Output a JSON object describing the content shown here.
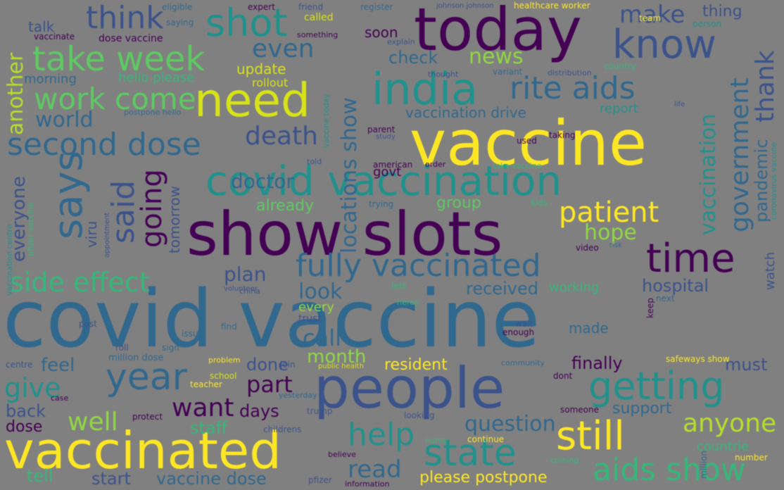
{
  "palette": {
    "background": "#808080",
    "viridis_dark": "#440154",
    "viridis_indigo": "#3b528b",
    "viridis_blue": "#31688e",
    "viridis_teal": "#21918c",
    "viridis_green": "#35b779",
    "viridis_lime": "#90d743",
    "viridis_yellow": "#fde725"
  },
  "words": [
    {
      "text": "covid vaccine",
      "color": "#31688e"
    },
    {
      "text": "show slots",
      "color": "#440154"
    },
    {
      "text": "vaccine",
      "color": "#fde725"
    },
    {
      "text": "today",
      "color": "#440154"
    },
    {
      "text": "people",
      "color": "#3b528b"
    },
    {
      "text": "vaccinated",
      "color": "#fde725"
    },
    {
      "text": "covid vaccination",
      "color": "#21918c"
    },
    {
      "text": "need",
      "color": "#d7e219"
    },
    {
      "text": "fully vaccinated",
      "color": "#31688e"
    },
    {
      "text": "india",
      "color": "#21918c"
    },
    {
      "text": "know",
      "color": "#3b528b"
    },
    {
      "text": "second dose",
      "color": "#31688e"
    },
    {
      "text": "take week",
      "color": "#5ec962"
    },
    {
      "text": "still",
      "color": "#fde725"
    },
    {
      "text": "state",
      "color": "#21918c"
    },
    {
      "text": "getting",
      "color": "#21918c"
    },
    {
      "text": "year",
      "color": "#31688e"
    },
    {
      "text": "rite aids",
      "color": "#31688e"
    },
    {
      "text": "says",
      "color": "#31688e"
    },
    {
      "text": "time",
      "color": "#440154"
    },
    {
      "text": "shot",
      "color": "#21918c"
    },
    {
      "text": "think",
      "color": "#3b528b"
    },
    {
      "text": "work come",
      "color": "#5ec962"
    },
    {
      "text": "aids show",
      "color": "#35b779"
    },
    {
      "text": "side effect",
      "color": "#35b779"
    },
    {
      "text": "patient",
      "color": "#fde725"
    },
    {
      "text": "help",
      "color": "#21918c"
    },
    {
      "text": "government",
      "color": "#31688e"
    },
    {
      "text": "thank",
      "color": "#3b528b"
    },
    {
      "text": "said",
      "color": "#3b528b"
    },
    {
      "text": "going",
      "color": "#440154"
    },
    {
      "text": "death",
      "color": "#3b528b"
    },
    {
      "text": "want",
      "color": "#440154"
    },
    {
      "text": "well",
      "color": "#90d743"
    },
    {
      "text": "anyone",
      "color": "#b5de2b"
    },
    {
      "text": "give",
      "color": "#21918c"
    },
    {
      "text": "locations show",
      "color": "#31688e"
    },
    {
      "text": "even",
      "color": "#31688e"
    },
    {
      "text": "make",
      "color": "#3b528b"
    },
    {
      "text": "news",
      "color": "#90d743"
    },
    {
      "text": "hope",
      "color": "#90d743"
    },
    {
      "text": "read",
      "color": "#31688e"
    },
    {
      "text": "part",
      "color": "#440154"
    },
    {
      "text": "question",
      "color": "#31688e"
    },
    {
      "text": "vaccination",
      "color": "#21918c"
    },
    {
      "text": "pandemic",
      "color": "#31688e"
    },
    {
      "text": "hospital",
      "color": "#3b528b"
    },
    {
      "text": "call",
      "color": "#31688e"
    },
    {
      "text": "look",
      "color": "#31688e"
    },
    {
      "text": "plan",
      "color": "#3b528b"
    },
    {
      "text": "world",
      "color": "#31688e"
    },
    {
      "text": "another",
      "color": "#b5de2b"
    },
    {
      "text": "everyone",
      "color": "#3b528b"
    },
    {
      "text": "doctor",
      "color": "#31688e"
    },
    {
      "text": "received",
      "color": "#31688e"
    },
    {
      "text": "month",
      "color": "#90d743"
    },
    {
      "text": "feel",
      "color": "#31688e"
    },
    {
      "text": "tell",
      "color": "#35b779"
    },
    {
      "text": "start",
      "color": "#3b528b"
    },
    {
      "text": "vaccine dose",
      "color": "#31688e"
    },
    {
      "text": "please postpone",
      "color": "#fde725"
    },
    {
      "text": "resident",
      "color": "#fde725"
    },
    {
      "text": "done",
      "color": "#3b528b"
    },
    {
      "text": "finally",
      "color": "#440154"
    },
    {
      "text": "must",
      "color": "#3b528b"
    },
    {
      "text": "support",
      "color": "#31688e"
    },
    {
      "text": "staff",
      "color": "#35b779"
    },
    {
      "text": "back",
      "color": "#3b528b"
    },
    {
      "text": "dose",
      "color": "#440154"
    },
    {
      "text": "days",
      "color": "#440154"
    },
    {
      "text": "already",
      "color": "#5ec962"
    },
    {
      "text": "group",
      "color": "#5ec962"
    },
    {
      "text": "check",
      "color": "#31688e"
    },
    {
      "text": "update",
      "color": "#d7e219"
    },
    {
      "text": "soon",
      "color": "#440154"
    },
    {
      "text": "talk",
      "color": "#3b528b"
    },
    {
      "text": "morning",
      "color": "#31688e"
    },
    {
      "text": "hello please",
      "color": "#35b779"
    },
    {
      "text": "rollout",
      "color": "#d7e219"
    },
    {
      "text": "thing",
      "color": "#3b528b"
    },
    {
      "text": "vaccination drive",
      "color": "#31688e"
    },
    {
      "text": "report",
      "color": "#21918c"
    },
    {
      "text": "working",
      "color": "#35b779"
    },
    {
      "text": "watch",
      "color": "#3b528b"
    },
    {
      "text": "tomorrow",
      "color": "#3b528b"
    },
    {
      "text": "viru",
      "color": "#3b528b"
    },
    {
      "text": "every",
      "color": "#90d743"
    },
    {
      "text": "countrie",
      "color": "#35b779"
    },
    {
      "text": "govt",
      "color": "#440154"
    },
    {
      "text": "made",
      "color": "#31688e"
    },
    {
      "text": "vaccinate",
      "color": "#440154"
    },
    {
      "text": "dose vaccine",
      "color": "#440154"
    },
    {
      "text": "postpone hello",
      "color": "#31688e"
    },
    {
      "text": "eligible",
      "color": "#31688e"
    },
    {
      "text": "expert",
      "color": "#440154"
    },
    {
      "text": "friend",
      "color": "#3b528b"
    },
    {
      "text": "register",
      "color": "#31688e"
    },
    {
      "text": "johnson johnson",
      "color": "#3b528b"
    },
    {
      "text": "healthcare worker",
      "color": "#fde725"
    },
    {
      "text": "saying",
      "color": "#31688e"
    },
    {
      "text": "called",
      "color": "#d7e219"
    },
    {
      "text": "person",
      "color": "#21918c"
    },
    {
      "text": "variant",
      "color": "#31688e"
    },
    {
      "text": "thought",
      "color": "#3b528b"
    },
    {
      "text": "distribution",
      "color": "#3b528b"
    },
    {
      "text": "country",
      "color": "#35b779"
    },
    {
      "text": "team",
      "color": "#fde725"
    },
    {
      "text": "life",
      "color": "#3b528b"
    },
    {
      "text": "parent",
      "color": "#440154"
    },
    {
      "text": "study",
      "color": "#3b528b"
    },
    {
      "text": "taking",
      "color": "#440154"
    },
    {
      "text": "used",
      "color": "#440154"
    },
    {
      "text": "american",
      "color": "#440154"
    },
    {
      "text": "order",
      "color": "#440154"
    },
    {
      "text": "told",
      "color": "#3b528b"
    },
    {
      "text": "take vaccine",
      "color": "#35b779"
    },
    {
      "text": "trying",
      "color": "#31688e"
    },
    {
      "text": "kids",
      "color": "#35b779"
    },
    {
      "text": "video",
      "color": "#440154"
    },
    {
      "text": "risk",
      "color": "#31688e"
    },
    {
      "text": "coronavirus vaccine",
      "color": "#21918c"
    },
    {
      "text": "vaccination centre",
      "color": "#21918c"
    },
    {
      "text": "pfizer vaccine",
      "color": "#35b779"
    },
    {
      "text": "appointment",
      "color": "#3b528b"
    },
    {
      "text": "lets",
      "color": "#35b779"
    },
    {
      "text": "heres",
      "color": "#35b779"
    },
    {
      "text": "next",
      "color": "#31688e"
    },
    {
      "text": "keep",
      "color": "#440154"
    },
    {
      "text": "wait",
      "color": "#3b528b"
    },
    {
      "text": "enough",
      "color": "#440154"
    },
    {
      "text": "trust",
      "color": "#3b528b"
    },
    {
      "text": "china",
      "color": "#3b528b"
    },
    {
      "text": "volunteer",
      "color": "#3b528b"
    },
    {
      "text": "find",
      "color": "#31688e"
    },
    {
      "text": "post",
      "color": "#3b528b"
    },
    {
      "text": "sign",
      "color": "#31688e"
    },
    {
      "text": "roll",
      "color": "#3b528b"
    },
    {
      "text": "centre",
      "color": "#3b528b"
    },
    {
      "text": "issue",
      "color": "#31688e"
    },
    {
      "text": "million dose",
      "color": "#31688e"
    },
    {
      "text": "problem",
      "color": "#fde725"
    },
    {
      "text": "join",
      "color": "#3b528b"
    },
    {
      "text": "public health",
      "color": "#d7e219"
    },
    {
      "text": "community",
      "color": "#31688e"
    },
    {
      "text": "safeways show",
      "color": "#fde725"
    },
    {
      "text": "school",
      "color": "#d7e219"
    },
    {
      "text": "teacher",
      "color": "#fde725"
    },
    {
      "text": "dont",
      "color": "#440154"
    },
    {
      "text": "case",
      "color": "#440154"
    },
    {
      "text": "yesterday",
      "color": "#31688e"
    },
    {
      "text": "protect",
      "color": "#440154"
    },
    {
      "text": "trump",
      "color": "#3b528b"
    },
    {
      "text": "looking",
      "color": "#3b528b"
    },
    {
      "text": "someone",
      "color": "#440154"
    },
    {
      "text": "continue",
      "color": "#fde725"
    },
    {
      "text": "nurse",
      "color": "#35b779"
    },
    {
      "text": "coming",
      "color": "#35b779"
    },
    {
      "text": "believe",
      "color": "#440154"
    },
    {
      "text": "pfizer",
      "color": "#3b528b"
    },
    {
      "text": "information",
      "color": "#440154"
    },
    {
      "text": "number",
      "color": "#fde725"
    },
    {
      "text": "million",
      "color": "#31688e"
    },
    {
      "text": "childrens",
      "color": "#3b528b"
    },
    {
      "text": "explain",
      "color": "#3b528b"
    },
    {
      "text": "something",
      "color": "#440154"
    },
    {
      "text": "vaccine today",
      "color": "#21918c"
    }
  ]
}
